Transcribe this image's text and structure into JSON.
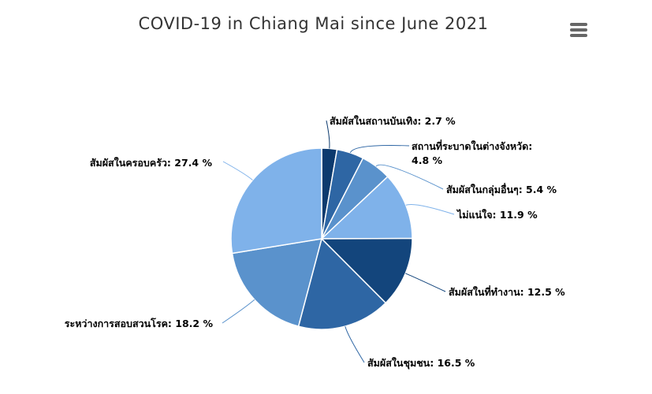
{
  "colors": {
    "s1": "#0c3a6e",
    "s2": "#2e66a4",
    "s3": "#5a92cc",
    "s4": "#7fb2ea",
    "s5": "#13457c",
    "menu": "#666666"
  },
  "chart_data": {
    "type": "pie",
    "title": "COVID-19 in Chiang Mai since June 2021",
    "slices": [
      {
        "label": "สัมผัสในสถานบันเทิง",
        "value": 2.7,
        "text": "สัมผัสในสถานบันเทิง: 2.7 %",
        "color": "#0c3a6e"
      },
      {
        "label": "สถานที่ระบาดในต่างจังหวัด",
        "value": 4.8,
        "text_line1": "สถานที่ระบาดในต่างจังหวัด:",
        "text_line2": "4.8 %",
        "color": "#2e66a4"
      },
      {
        "label": "สัมผัสในกลุ่มอื่นๆ",
        "value": 5.4,
        "text": "สัมผัสในกลุ่มอื่นๆ: 5.4 %",
        "color": "#5a92cc"
      },
      {
        "label": "ไม่แน่ใจ",
        "value": 11.9,
        "text": "ไม่แน่ใจ: 11.9 %",
        "color": "#7fb2ea"
      },
      {
        "label": "สัมผัสในที่ทำงาน",
        "value": 12.5,
        "text": "สัมผัสในที่ทำงาน: 12.5 %",
        "color": "#13457c"
      },
      {
        "label": "สัมผัสในชุมชน",
        "value": 16.5,
        "text": "สัมผัสในชุมชน: 16.5 %",
        "color": "#2e66a4"
      },
      {
        "label": "ระหว่างการสอบสวนโรค",
        "value": 18.2,
        "text": "ระหว่างการสอบสวนโรค: 18.2 %",
        "color": "#5a92cc"
      },
      {
        "label": "สัมผัสในครอบครัว",
        "value": 27.4,
        "text": "สัมผัสในครอบครัว: 27.4 %",
        "color": "#7fb2ea"
      }
    ],
    "legend": "none",
    "menu_icon": "hamburger-menu-icon"
  }
}
